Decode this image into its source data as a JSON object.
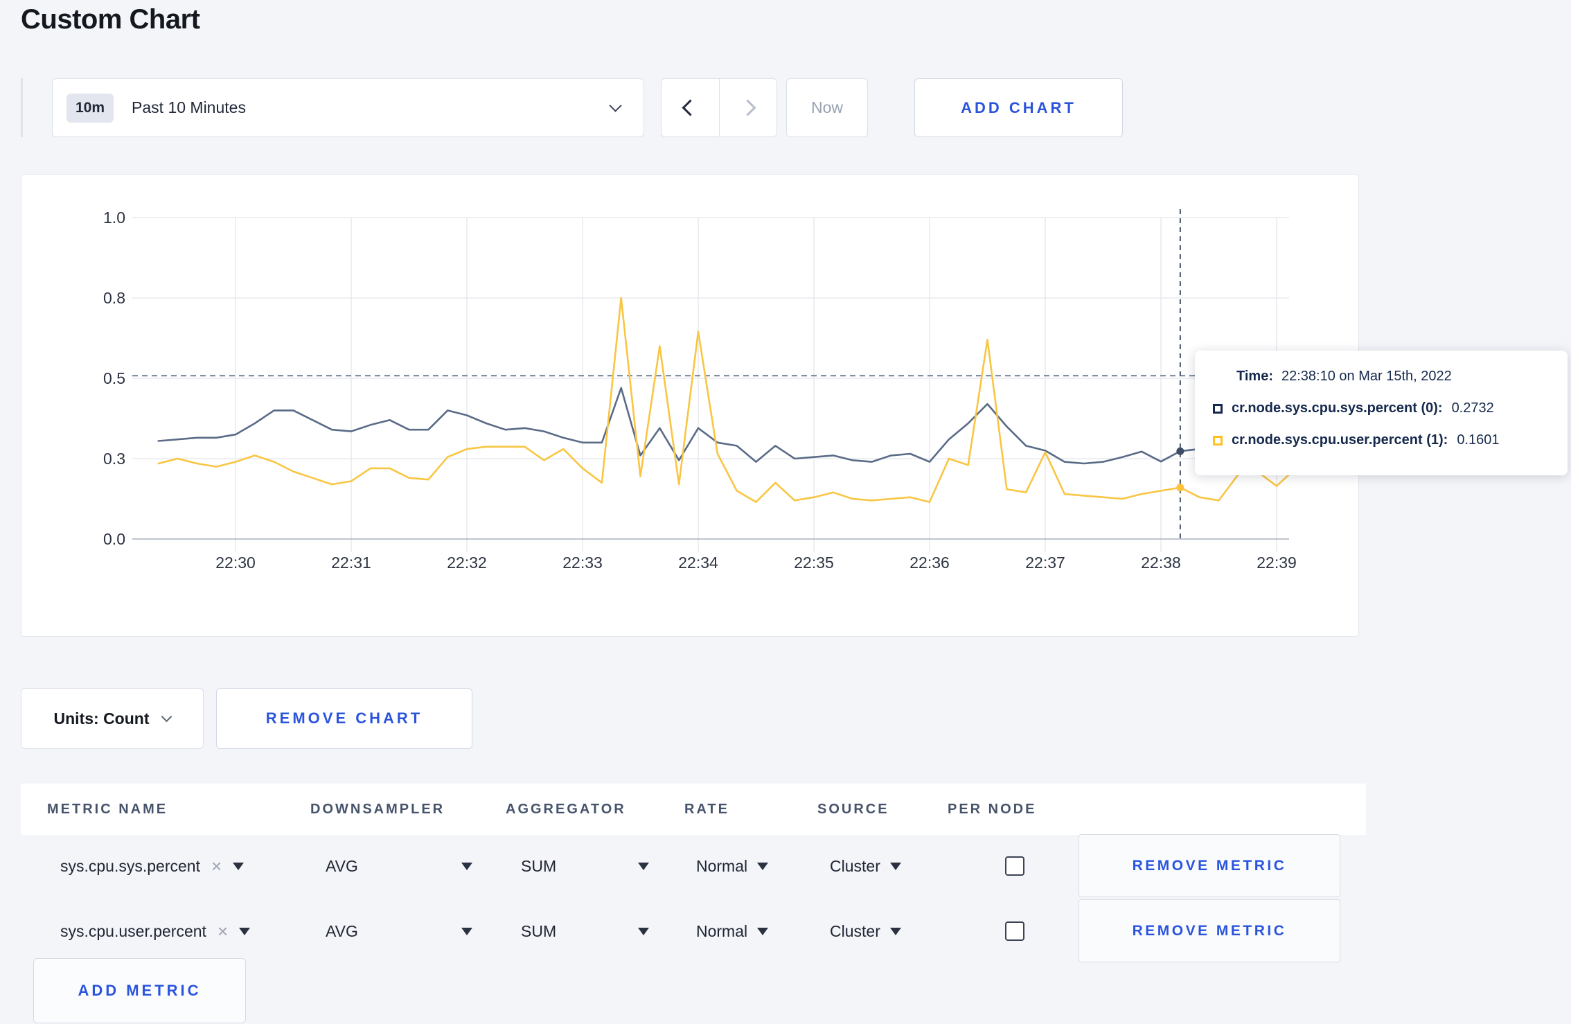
{
  "page": {
    "title": "Custom Chart",
    "background_color": "#f4f5f9",
    "accent_blue": "#2b54dd"
  },
  "toolbar": {
    "time_window_badge": "10m",
    "time_window_label": "Past 10 Minutes",
    "now_label": "Now",
    "add_chart_label": "ADD CHART"
  },
  "chart_controls": {
    "units_button_label": "Units: Count",
    "remove_chart_label": "REMOVE CHART"
  },
  "tooltip": {
    "time_label": "Time:",
    "time_value": "22:38:10 on Mar 15th, 2022",
    "series": [
      {
        "name": "cr.node.sys.cpu.sys.percent (0):",
        "value": "0.2732",
        "swatch_color": "#16294d"
      },
      {
        "name": "cr.node.sys.cpu.user.percent (1):",
        "value": "0.1601",
        "swatch_color": "#ffc11e"
      }
    ]
  },
  "chart_data": {
    "type": "line",
    "title": "",
    "xlabel": "",
    "ylabel": "",
    "ylim": [
      0,
      1
    ],
    "grid": true,
    "grid_color": "#e8eaef",
    "axis_line_color": "#a9b0bd",
    "tick_label_color": "#2c3340",
    "y_ticks": [
      {
        "value": 0,
        "label": "0.0"
      },
      {
        "value": 0.25,
        "label": "0.3"
      },
      {
        "value": 0.5,
        "label": "0.5"
      },
      {
        "value": 0.75,
        "label": "0.8"
      },
      {
        "value": 1,
        "label": "1.0"
      }
    ],
    "x_tick_labels": [
      "22:30",
      "22:31",
      "22:32",
      "22:33",
      "22:34",
      "22:35",
      "22:36",
      "22:37",
      "22:38",
      "22:39"
    ],
    "x_first_tick_offset_seconds": 40,
    "x_tick_interval_seconds": 60,
    "sample_interval_seconds": 10,
    "threshold_line": {
      "value": 0.508,
      "color": "#6e8096"
    },
    "crosshair": {
      "offset_seconds": 530,
      "color": "#46536a",
      "points": [
        0.2732,
        0.1601
      ]
    },
    "series": [
      {
        "name": "cr.node.sys.cpu.sys.percent",
        "line_color": "#5a6b87",
        "point_color": "#3d4c66",
        "values": [
          0.305,
          0.31,
          0.315,
          0.315,
          0.325,
          0.36,
          0.4,
          0.4,
          0.37,
          0.34,
          0.335,
          0.355,
          0.37,
          0.34,
          0.34,
          0.4,
          0.385,
          0.36,
          0.34,
          0.345,
          0.335,
          0.315,
          0.3,
          0.3,
          0.47,
          0.26,
          0.345,
          0.245,
          0.345,
          0.3,
          0.29,
          0.24,
          0.29,
          0.25,
          0.255,
          0.26,
          0.245,
          0.24,
          0.26,
          0.265,
          0.24,
          0.31,
          0.36,
          0.42,
          0.35,
          0.29,
          0.275,
          0.24,
          0.235,
          0.24,
          0.255,
          0.272,
          0.241,
          0.2732,
          0.28,
          0.27,
          0.285,
          0.3,
          0.29,
          0.29
        ]
      },
      {
        "name": "cr.node.sys.cpu.user.percent",
        "line_color": "#f9c643",
        "point_color": "#fdc23a",
        "values": [
          0.235,
          0.25,
          0.235,
          0.225,
          0.24,
          0.26,
          0.24,
          0.21,
          0.19,
          0.17,
          0.18,
          0.22,
          0.22,
          0.19,
          0.185,
          0.255,
          0.28,
          0.287,
          0.287,
          0.287,
          0.245,
          0.28,
          0.22,
          0.175,
          0.75,
          0.195,
          0.6,
          0.17,
          0.645,
          0.265,
          0.15,
          0.115,
          0.175,
          0.12,
          0.13,
          0.145,
          0.125,
          0.12,
          0.125,
          0.13,
          0.115,
          0.25,
          0.23,
          0.62,
          0.155,
          0.145,
          0.27,
          0.14,
          0.135,
          0.13,
          0.125,
          0.14,
          0.15,
          0.1601,
          0.13,
          0.12,
          0.2,
          0.21,
          0.165,
          0.22
        ]
      }
    ]
  },
  "metrics_table": {
    "columns": [
      "METRIC NAME",
      "DOWNSAMPLER",
      "AGGREGATOR",
      "RATE",
      "SOURCE",
      "PER NODE"
    ],
    "clear_icon": "×",
    "rows": [
      {
        "metric_name": "sys.cpu.sys.percent",
        "downsampler": "AVG",
        "aggregator": "SUM",
        "rate": "Normal",
        "source": "Cluster",
        "per_node_checked": false,
        "remove_label": "REMOVE METRIC"
      },
      {
        "metric_name": "sys.cpu.user.percent",
        "downsampler": "AVG",
        "aggregator": "SUM",
        "rate": "Normal",
        "source": "Cluster",
        "per_node_checked": false,
        "remove_label": "REMOVE METRIC"
      }
    ],
    "add_metric_label": "ADD METRIC"
  }
}
